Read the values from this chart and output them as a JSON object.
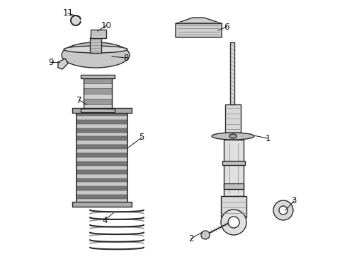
{
  "bg_color": "#ffffff",
  "line_color": "#2a2a2a",
  "gray_light": "#d0d0d0",
  "gray_mid": "#aaaaaa",
  "gray_dark": "#888888",
  "lw": 1.0,
  "figw": 4.9,
  "figh": 3.6,
  "dpi": 100
}
